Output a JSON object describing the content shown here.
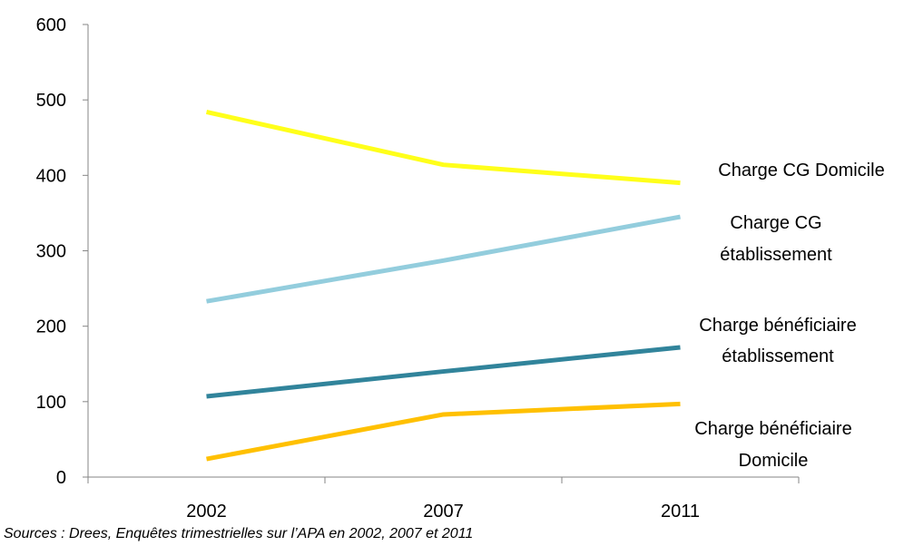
{
  "chart_data": {
    "type": "line",
    "categories": [
      "2002",
      "2007",
      "2011"
    ],
    "ylim": [
      0,
      600
    ],
    "yticks": [
      0,
      100,
      200,
      300,
      400,
      500,
      600
    ],
    "grid": false,
    "series": [
      {
        "name": "Charge CG Domicile",
        "label_lines": [
          "Charge CG Domicile"
        ],
        "color": "#FFFF1A",
        "values": [
          484,
          414,
          390
        ]
      },
      {
        "name": "Charge CG établissement",
        "label_lines": [
          "Charge CG",
          "établissement"
        ],
        "color": "#93CDDD",
        "values": [
          233,
          287,
          345
        ]
      },
      {
        "name": "Charge bénéficiaire établissement",
        "label_lines": [
          "Charge bénéficiaire",
          "établissement"
        ],
        "color": "#31849B",
        "values": [
          107,
          140,
          172
        ]
      },
      {
        "name": "Charge bénéficiaire Domicile",
        "label_lines": [
          "Charge bénéficiaire",
          "Domicile"
        ],
        "color": "#FFC000",
        "values": [
          24,
          83,
          97
        ]
      }
    ]
  },
  "source_note": "Sources : Drees, Enquêtes trimestrielles  sur l’APA  en 2002, 2007 et 2011"
}
